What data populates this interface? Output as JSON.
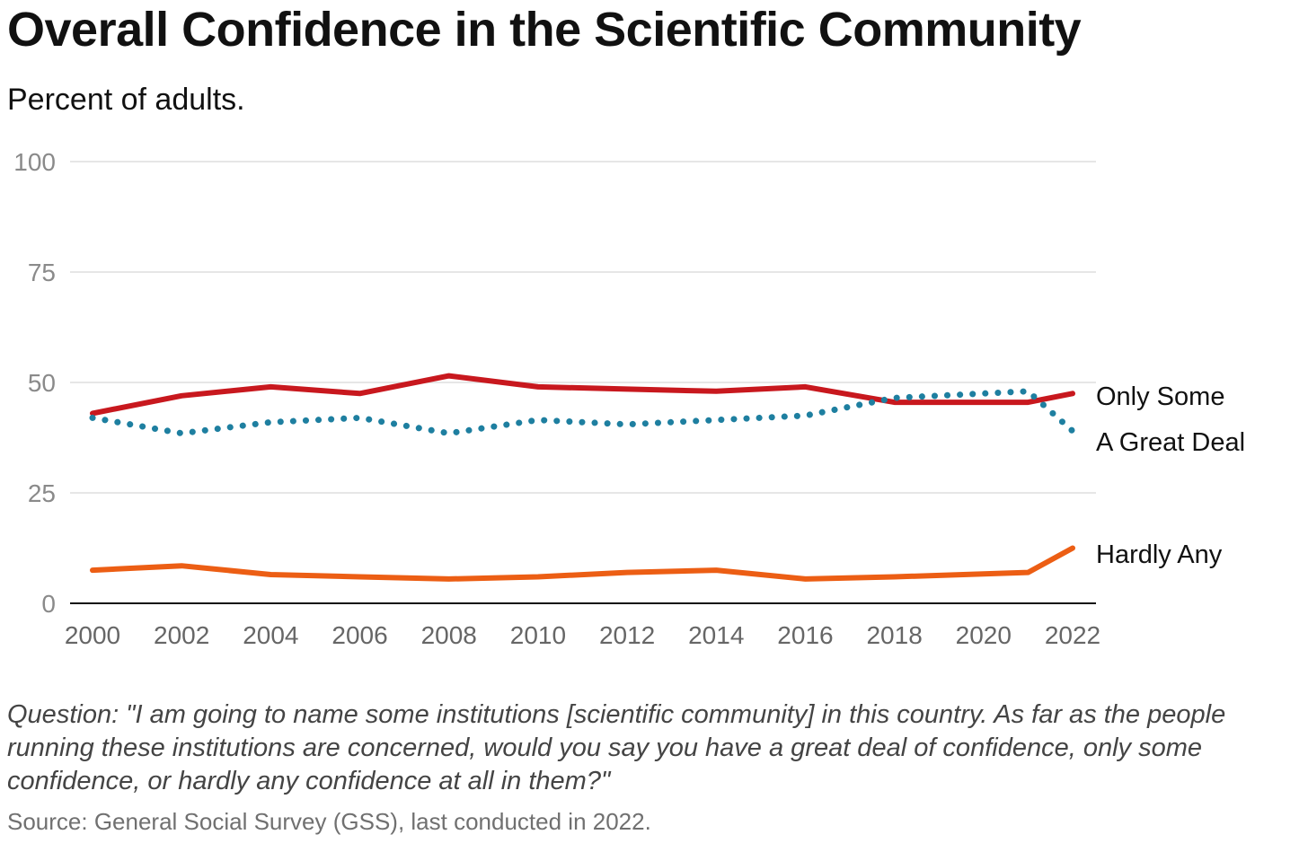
{
  "title": "Overall Confidence in the Scientific Community",
  "subtitle": "Percent of adults.",
  "note": "Question: \"I am going to name some institutions [scientific community] in this country. As far as the people running these institutions are concerned, would you say you have a great deal of confidence, only some confidence, or hardly any confidence at all in them?\"",
  "source": "Source: General Social Survey (GSS), last conducted in 2022.",
  "chart_data": {
    "type": "line",
    "x": [
      2000,
      2002,
      2004,
      2006,
      2008,
      2010,
      2012,
      2014,
      2016,
      2018,
      2021,
      2022
    ],
    "xticks": [
      "2000",
      "2002",
      "2004",
      "2006",
      "2008",
      "2010",
      "2012",
      "2014",
      "2016",
      "2018",
      "2020",
      "2022"
    ],
    "yticks": [
      "0",
      "25",
      "50",
      "75",
      "100"
    ],
    "xlim": [
      2000,
      2022
    ],
    "ylim": [
      0,
      100
    ],
    "grid": true,
    "series": [
      {
        "name": "Only Some",
        "color": "#c8181e",
        "style": "solid",
        "values": [
          43,
          47,
          49,
          47.5,
          51.5,
          49,
          48.5,
          48,
          49,
          45.5,
          45.5,
          47.5
        ]
      },
      {
        "name": "A Great Deal",
        "color": "#1e7fa0",
        "style": "dotted",
        "values": [
          42,
          38.5,
          41,
          42,
          38.5,
          41.5,
          40.5,
          41.5,
          42.5,
          46.5,
          48,
          39
        ]
      },
      {
        "name": "Hardly Any",
        "color": "#ec5e14",
        "style": "solid",
        "values": [
          7.5,
          8.5,
          6.5,
          6,
          5.5,
          6,
          7,
          7.5,
          5.5,
          6,
          7,
          12.5
        ]
      }
    ]
  }
}
